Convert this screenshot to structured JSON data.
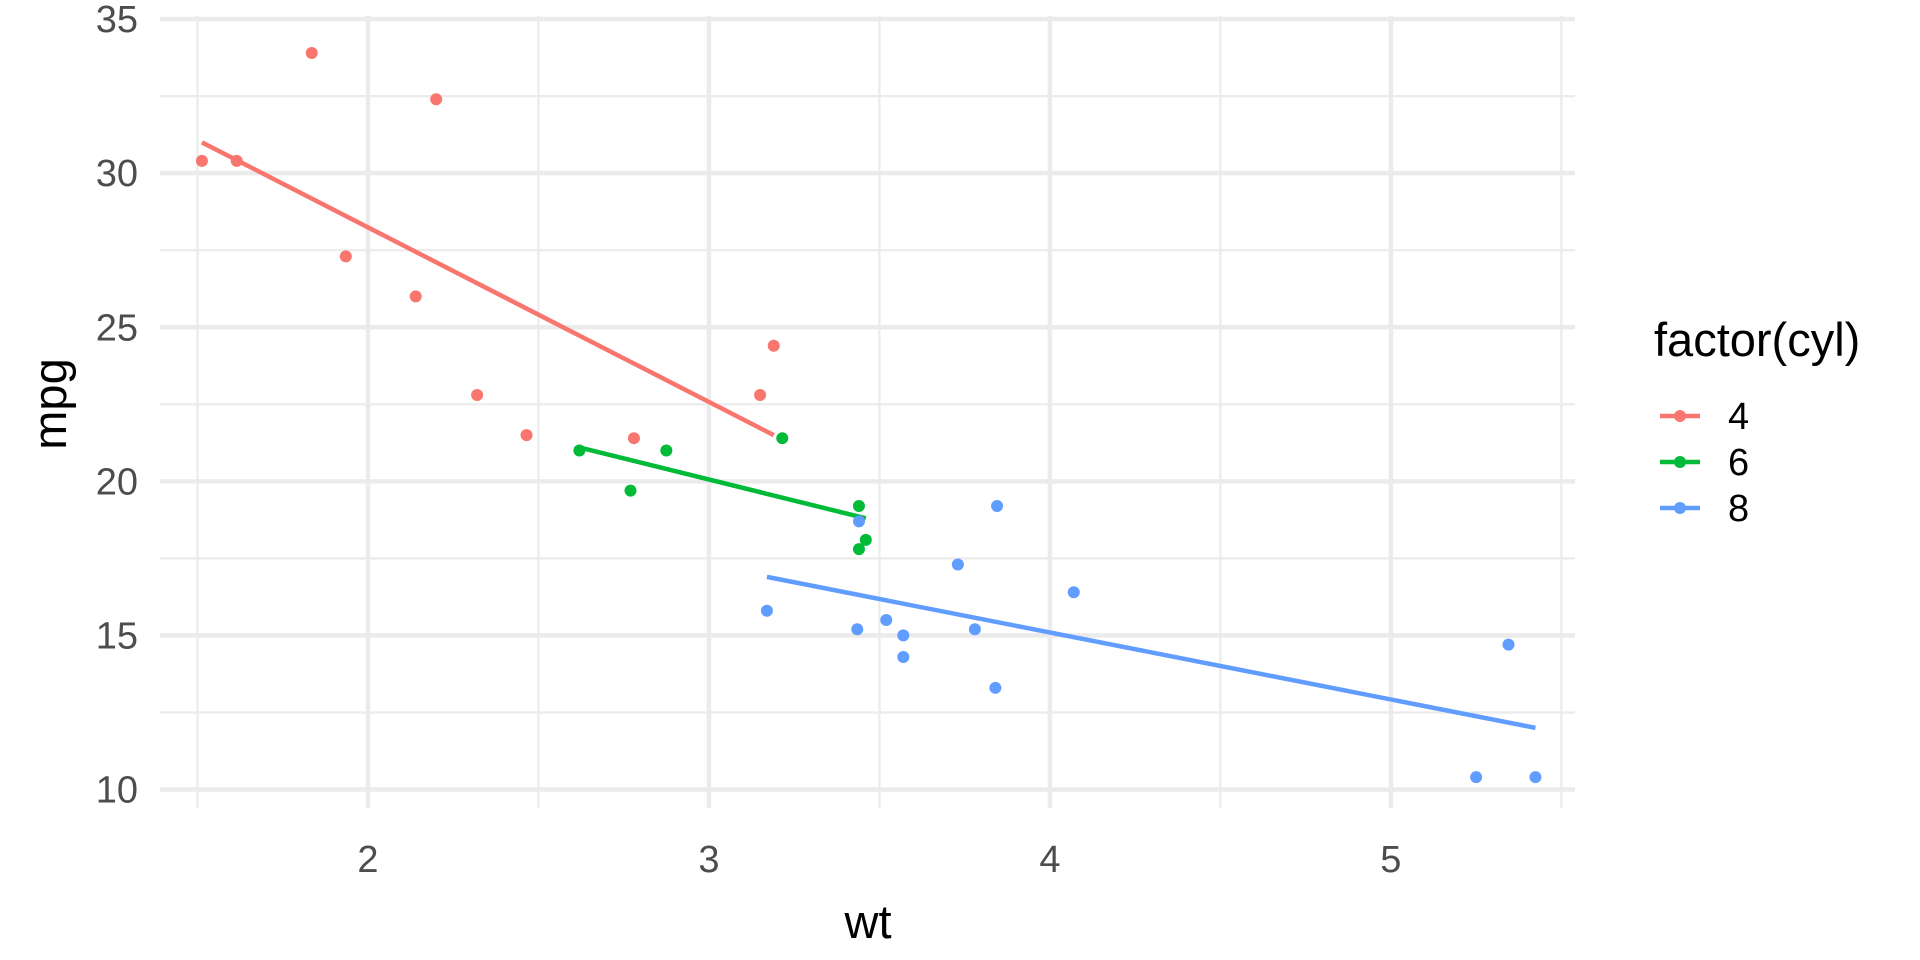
{
  "chart_data": {
    "type": "scatter",
    "xlabel": "wt",
    "ylabel": "mpg",
    "xlim": [
      1.39,
      5.54
    ],
    "ylim": [
      9.4,
      35.1
    ],
    "x_ticks": [
      2,
      3,
      4,
      5
    ],
    "y_ticks": [
      10,
      15,
      20,
      25,
      30,
      35
    ],
    "grid": true,
    "legend": {
      "title": "factor(cyl)",
      "position": "right"
    },
    "series": [
      {
        "name": "4",
        "color": "#F8766D",
        "points": [
          [
            2.32,
            22.8
          ],
          [
            3.19,
            24.4
          ],
          [
            3.15,
            22.8
          ],
          [
            2.2,
            32.4
          ],
          [
            1.615,
            30.4
          ],
          [
            1.835,
            33.9
          ],
          [
            2.465,
            21.5
          ],
          [
            1.935,
            27.3
          ],
          [
            2.14,
            26.0
          ],
          [
            1.513,
            30.4
          ],
          [
            2.78,
            21.4
          ]
        ],
        "fit": [
          [
            1.513,
            31.0
          ],
          [
            3.19,
            21.5
          ]
        ]
      },
      {
        "name": "6",
        "color": "#00BA38",
        "points": [
          [
            2.62,
            21.0
          ],
          [
            2.875,
            21.0
          ],
          [
            3.215,
            21.4
          ],
          [
            3.46,
            18.1
          ],
          [
            3.44,
            19.2
          ],
          [
            3.44,
            17.8
          ],
          [
            2.77,
            19.7
          ]
        ],
        "fit": [
          [
            2.62,
            21.1
          ],
          [
            3.46,
            18.8
          ]
        ]
      },
      {
        "name": "8",
        "color": "#619CFF",
        "points": [
          [
            3.44,
            18.7
          ],
          [
            3.57,
            14.3
          ],
          [
            4.07,
            16.4
          ],
          [
            3.73,
            17.3
          ],
          [
            3.78,
            15.2
          ],
          [
            5.25,
            10.4
          ],
          [
            5.424,
            10.4
          ],
          [
            5.345,
            14.7
          ],
          [
            3.52,
            15.5
          ],
          [
            3.435,
            15.2
          ],
          [
            3.84,
            13.3
          ],
          [
            3.845,
            19.2
          ],
          [
            3.17,
            15.8
          ],
          [
            3.57,
            15.0
          ]
        ],
        "fit": [
          [
            3.17,
            16.9
          ],
          [
            5.424,
            12.0
          ]
        ]
      }
    ]
  }
}
